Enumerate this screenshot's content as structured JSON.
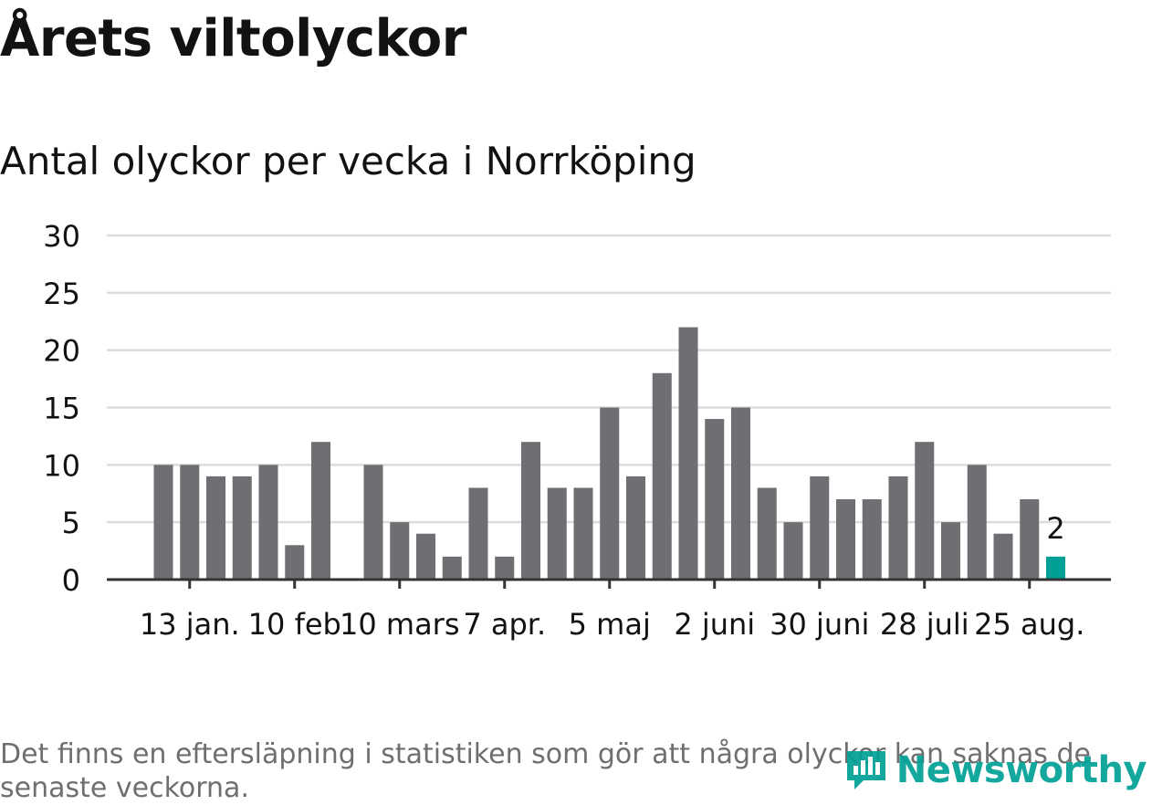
{
  "header": {
    "title": "Årets viltolyckor",
    "subtitle": "Antal olyckor per vecka i Norrköping"
  },
  "footnote": "Det finns en eftersläpning i statistiken som gör att några olyckor kan saknas de senaste veckorna.",
  "brand": {
    "label": "Newsworthy",
    "icon": "newsworthy-logo-icon"
  },
  "colors": {
    "bar": "#6e6e73",
    "highlight": "#00a096",
    "grid": "#dcdcdc",
    "axis": "#333333",
    "text": "#121212"
  },
  "chart_data": {
    "type": "bar",
    "xlabel": "",
    "ylabel": "",
    "ylim": [
      0,
      30
    ],
    "yticks": [
      0,
      5,
      10,
      15,
      20,
      25,
      30
    ],
    "grid": true,
    "x_tick_labels": [
      "13 jan.",
      "10 feb",
      "10 mars",
      "7 apr.",
      "5 maj",
      "2 juni",
      "30 juni",
      "28 juli",
      "25 aug."
    ],
    "x_tick_index": [
      1,
      5,
      9,
      13,
      17,
      21,
      25,
      29,
      33
    ],
    "values": [
      10,
      10,
      9,
      9,
      10,
      3,
      12,
      0,
      10,
      5,
      4,
      2,
      8,
      2,
      12,
      8,
      8,
      15,
      9,
      18,
      22,
      14,
      15,
      8,
      5,
      9,
      7,
      7,
      9,
      12,
      5,
      10,
      4,
      7,
      2
    ],
    "highlight_index": 34,
    "annotation": "2"
  }
}
